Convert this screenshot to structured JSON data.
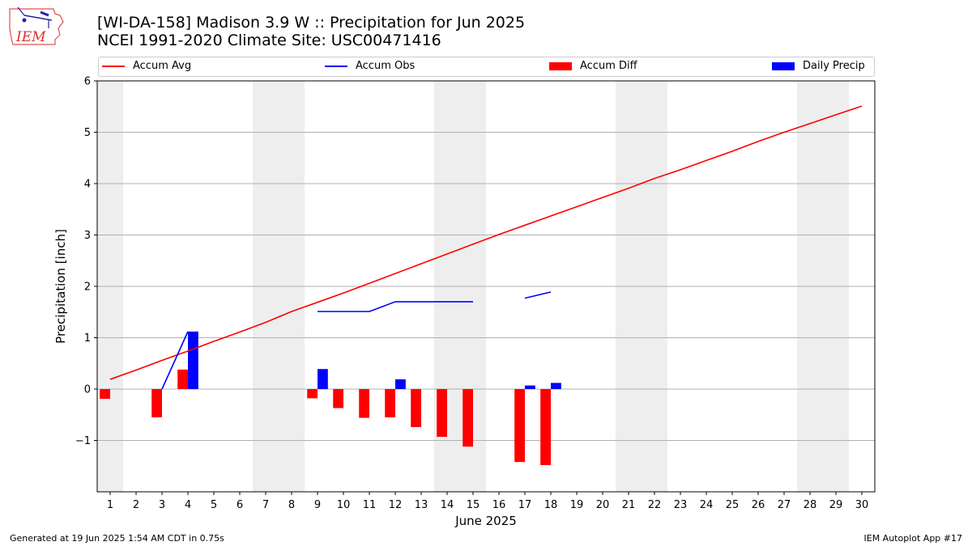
{
  "header": {
    "title": "[WI-DA-158] Madison 3.9 W :: Precipitation for Jun 2025",
    "subtitle": "NCEI 1991-2020 Climate Site: USC00471416"
  },
  "logo": {
    "text": "IEM",
    "icon": "iem-iowa-logo"
  },
  "footer": {
    "left": "Generated at 19 Jun 2025 1:54 AM CDT in 0.75s",
    "right": "IEM Autoplot App #17"
  },
  "legend": [
    {
      "label": "Accum Avg",
      "kind": "line",
      "color": "#ff0000"
    },
    {
      "label": "Accum Obs",
      "kind": "line",
      "color": "#0000ff"
    },
    {
      "label": "Accum Diff",
      "kind": "patch",
      "color": "#ff0000"
    },
    {
      "label": "Daily Precip",
      "kind": "patch",
      "color": "#0000ff"
    }
  ],
  "chart_data": {
    "type": "bar",
    "xlabel": "June 2025",
    "ylabel": "Precipitation [inch]",
    "xlim": [
      0.5,
      30.5
    ],
    "ylim": [
      -2.0,
      6.0
    ],
    "yticks": [
      -1,
      0,
      1,
      2,
      3,
      4,
      5,
      6
    ],
    "ytick_labels": [
      "−1",
      "0",
      "1",
      "2",
      "3",
      "4",
      "5",
      "6"
    ],
    "xticks": [
      1,
      2,
      3,
      4,
      5,
      6,
      7,
      8,
      9,
      10,
      11,
      12,
      13,
      14,
      15,
      16,
      17,
      18,
      19,
      20,
      21,
      22,
      23,
      24,
      25,
      26,
      27,
      28,
      29,
      30
    ],
    "grid": "y",
    "legend_position": "top",
    "weekend_shading": [
      [
        0.5,
        1.5
      ],
      [
        6.5,
        8.5
      ],
      [
        13.5,
        15.5
      ],
      [
        20.5,
        22.5
      ],
      [
        27.5,
        29.5
      ]
    ],
    "shading_color": "#eeeeee",
    "series": [
      {
        "name": "Accum Avg",
        "kind": "line",
        "color": "#ff0000",
        "x": [
          1,
          2,
          3,
          4,
          5,
          6,
          7,
          8,
          9,
          10,
          11,
          12,
          13,
          14,
          15,
          16,
          17,
          18,
          19,
          20,
          21,
          22,
          23,
          24,
          25,
          26,
          27,
          28,
          29,
          30
        ],
        "y": [
          0.19,
          0.37,
          0.56,
          0.74,
          0.93,
          1.11,
          1.3,
          1.51,
          1.69,
          1.87,
          2.06,
          2.25,
          2.44,
          2.63,
          2.82,
          3.01,
          3.19,
          3.37,
          3.55,
          3.73,
          3.91,
          4.1,
          4.27,
          4.45,
          4.63,
          4.82,
          5.0,
          5.17,
          5.34,
          5.51
        ]
      },
      {
        "name": "Accum Obs",
        "kind": "line",
        "color": "#0000ff",
        "segments": [
          {
            "x": [
              3,
              4
            ],
            "y": [
              0.0,
              1.12
            ]
          },
          {
            "x": [
              9,
              10,
              11,
              12,
              13,
              14,
              15
            ],
            "y": [
              1.51,
              1.51,
              1.51,
              1.7,
              1.7,
              1.7,
              1.7
            ]
          },
          {
            "x": [
              17,
              18
            ],
            "y": [
              1.77,
              1.89
            ]
          }
        ]
      },
      {
        "name": "Accum Diff",
        "kind": "bar",
        "color": "#ff0000",
        "offset": -0.2,
        "x": [
          1,
          3,
          4,
          9,
          10,
          11,
          12,
          13,
          14,
          15,
          17,
          18
        ],
        "values": [
          -0.19,
          -0.55,
          0.38,
          -0.18,
          -0.37,
          -0.56,
          -0.55,
          -0.74,
          -0.93,
          -1.12,
          -1.42,
          -1.48
        ]
      },
      {
        "name": "Daily Precip",
        "kind": "bar",
        "color": "#0000ff",
        "offset": 0.2,
        "x": [
          4,
          9,
          12,
          17,
          18
        ],
        "values": [
          1.12,
          0.39,
          0.19,
          0.07,
          0.12
        ]
      }
    ]
  }
}
